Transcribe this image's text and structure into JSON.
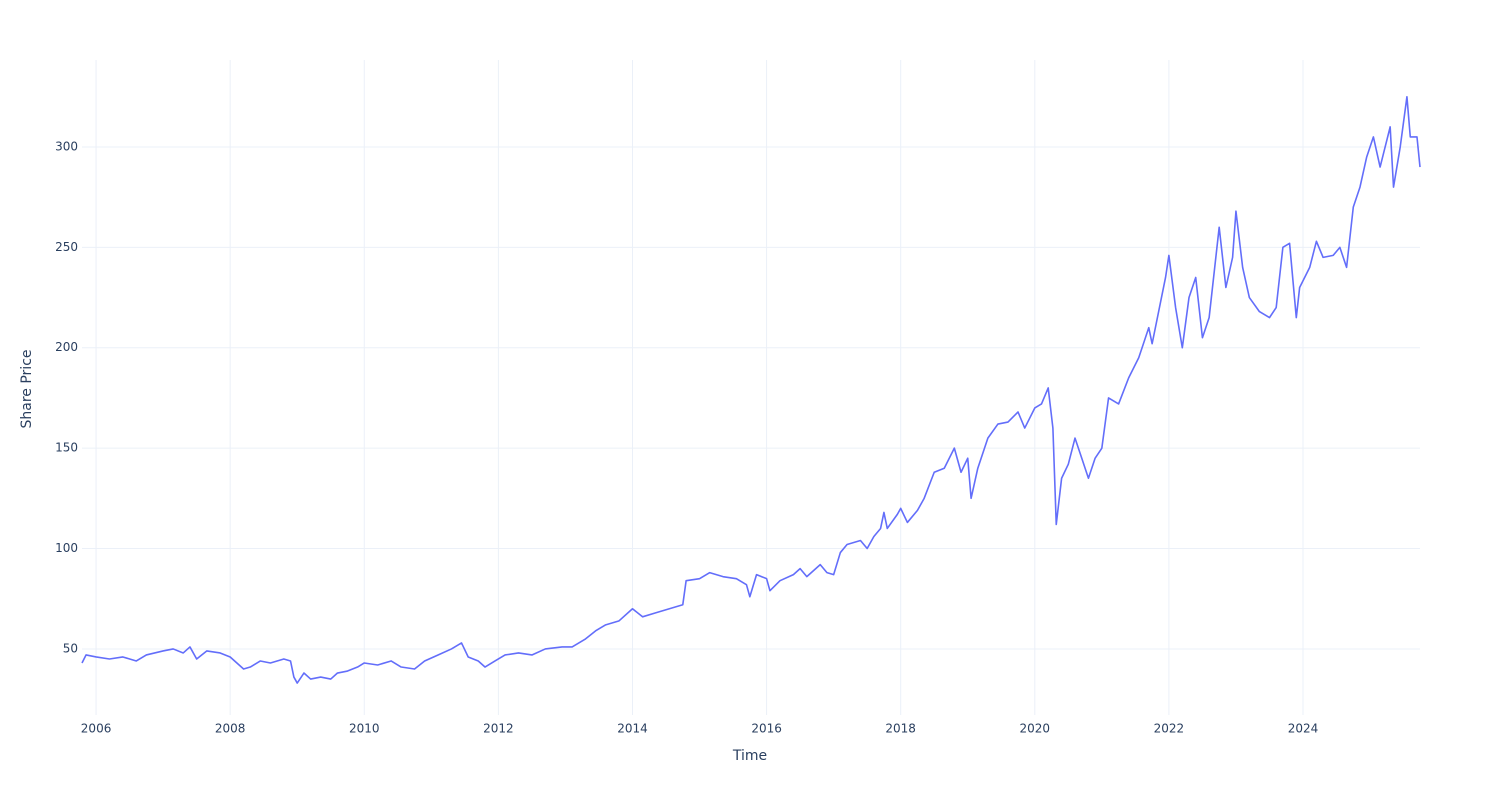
{
  "chart_data": {
    "type": "line",
    "x_label": "Time",
    "y_label": "Share Price",
    "xlim": [
      2005.79,
      2025.745
    ],
    "ylim": [
      17.1,
      343.3
    ],
    "xticks": [
      2006,
      2008,
      2010,
      2012,
      2014,
      2016,
      2018,
      2020,
      2022,
      2024
    ],
    "yticks": [
      50,
      100,
      150,
      200,
      250,
      300
    ],
    "grid": true,
    "x": [
      2005.79,
      2005.85,
      2006.0,
      2006.2,
      2006.4,
      2006.6,
      2006.75,
      2007.0,
      2007.15,
      2007.3,
      2007.4,
      2007.5,
      2007.65,
      2007.85,
      2008.0,
      2008.1,
      2008.2,
      2008.3,
      2008.45,
      2008.6,
      2008.8,
      2008.9,
      2008.95,
      2009.0,
      2009.1,
      2009.2,
      2009.35,
      2009.5,
      2009.6,
      2009.75,
      2009.9,
      2010.0,
      2010.2,
      2010.4,
      2010.55,
      2010.75,
      2010.9,
      2011.1,
      2011.3,
      2011.45,
      2011.55,
      2011.7,
      2011.8,
      2011.95,
      2012.1,
      2012.3,
      2012.5,
      2012.7,
      2012.95,
      2013.1,
      2013.3,
      2013.45,
      2013.6,
      2013.8,
      2014.0,
      2014.15,
      2014.35,
      2014.55,
      2014.75,
      2014.8,
      2015.0,
      2015.15,
      2015.35,
      2015.55,
      2015.7,
      2015.75,
      2015.85,
      2016.0,
      2016.05,
      2016.2,
      2016.4,
      2016.5,
      2016.6,
      2016.8,
      2016.9,
      2017.0,
      2017.1,
      2017.2,
      2017.4,
      2017.5,
      2017.6,
      2017.7,
      2017.75,
      2017.8,
      2017.95,
      2018.0,
      2018.1,
      2018.25,
      2018.35,
      2018.5,
      2018.65,
      2018.8,
      2018.9,
      2019.0,
      2019.05,
      2019.15,
      2019.3,
      2019.45,
      2019.6,
      2019.75,
      2019.85,
      2020.0,
      2020.1,
      2020.2,
      2020.27,
      2020.32,
      2020.4,
      2020.5,
      2020.6,
      2020.7,
      2020.8,
      2020.9,
      2021.0,
      2021.1,
      2021.25,
      2021.4,
      2021.55,
      2021.7,
      2021.75,
      2021.95,
      2022.0,
      2022.1,
      2022.2,
      2022.3,
      2022.4,
      2022.5,
      2022.6,
      2022.75,
      2022.85,
      2022.95,
      2023.0,
      2023.1,
      2023.2,
      2023.35,
      2023.5,
      2023.6,
      2023.7,
      2023.8,
      2023.9,
      2023.95,
      2024.1,
      2024.2,
      2024.3,
      2024.45,
      2024.55,
      2024.65,
      2024.75,
      2024.85,
      2024.95,
      2025.05,
      2025.15,
      2025.3,
      2025.35,
      2025.45,
      2025.55,
      2025.6,
      2025.7,
      2025.745
    ],
    "series": [
      {
        "name": "Share Price",
        "color": "#636efa",
        "values": [
          43,
          47,
          46,
          45,
          46,
          44,
          47,
          49,
          50,
          48,
          51,
          45,
          49,
          48,
          46,
          43,
          40,
          41,
          44,
          43,
          45,
          44,
          36,
          33,
          38,
          35,
          36,
          35,
          38,
          39,
          41,
          43,
          42,
          44,
          41,
          40,
          44,
          47,
          50,
          53,
          46,
          44,
          41,
          44,
          47,
          48,
          47,
          50,
          51,
          51,
          55,
          59,
          62,
          64,
          70,
          66,
          68,
          70,
          72,
          84,
          85,
          88,
          86,
          85,
          82,
          76,
          87,
          85,
          79,
          84,
          87,
          90,
          86,
          92,
          88,
          87,
          98,
          102,
          104,
          100,
          106,
          110,
          118,
          110,
          117,
          120,
          113,
          119,
          125,
          138,
          140,
          150,
          138,
          145,
          125,
          140,
          155,
          162,
          163,
          168,
          160,
          170,
          172,
          180,
          160,
          112,
          135,
          142,
          155,
          145,
          135,
          145,
          150,
          175,
          172,
          185,
          195,
          210,
          202,
          235,
          246,
          220,
          200,
          225,
          235,
          205,
          215,
          260,
          230,
          245,
          268,
          240,
          225,
          218,
          215,
          220,
          250,
          252,
          215,
          230,
          240,
          253,
          245,
          246,
          250,
          240,
          270,
          280,
          295,
          305,
          290,
          310,
          280,
          300,
          325,
          305,
          305,
          290
        ]
      }
    ]
  }
}
